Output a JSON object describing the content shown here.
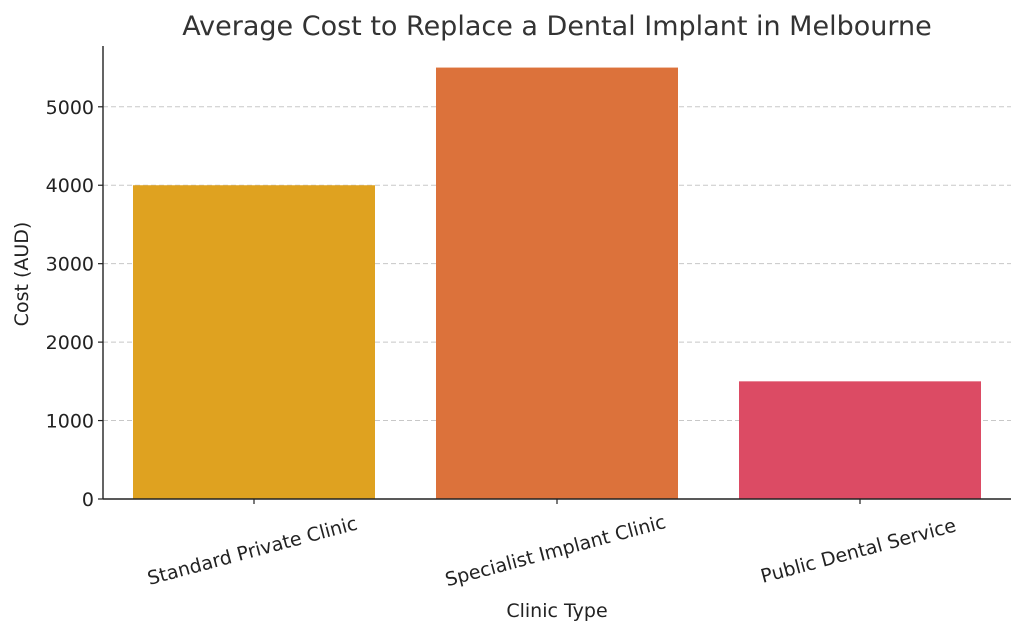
{
  "chart_data": {
    "type": "bar",
    "title": "Average Cost to Replace a Dental Implant in Melbourne",
    "xlabel": "Clinic Type",
    "ylabel": "Cost (AUD)",
    "categories": [
      "Standard Private Clinic",
      "Specialist Implant Clinic",
      "Public Dental Service"
    ],
    "values": [
      4000,
      5500,
      1500
    ],
    "colors": [
      "#dfa220",
      "#dc723b",
      "#dc4b64"
    ],
    "ylim": [
      0,
      5775
    ],
    "yticks": [
      0,
      1000,
      2000,
      3000,
      4000,
      5000
    ],
    "grid": true
  }
}
